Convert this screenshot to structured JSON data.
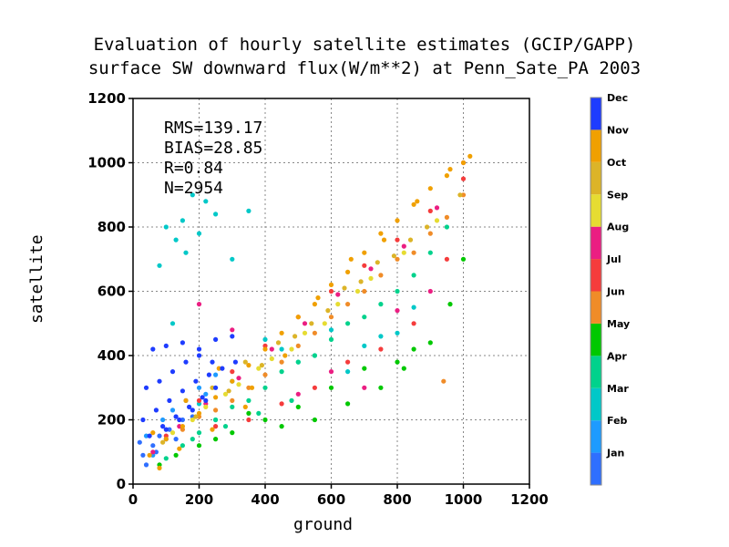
{
  "chart_data": {
    "type": "scatter",
    "title_lines": [
      "Evaluation of hourly satellite estimates (GCIP/GAPP)",
      "surface SW downward flux(W/m**2) at Penn_Sate_PA 2003"
    ],
    "xlabel": "ground",
    "ylabel": "satellite",
    "xlim": [
      0,
      1200
    ],
    "ylim": [
      0,
      1200
    ],
    "xticks": [
      "0",
      "200",
      "400",
      "600",
      "800",
      "1000",
      "1200"
    ],
    "yticks": [
      "0",
      "200",
      "400",
      "600",
      "800",
      "1000",
      "1200"
    ],
    "grid": true,
    "stats": {
      "rms": "RMS=139.17",
      "bias": "BIAS=28.85",
      "r": "R=0.84",
      "n": "N=2954"
    },
    "legend": {
      "placement": "right",
      "entries": [
        {
          "label": "Jan",
          "color": "#2f6fff"
        },
        {
          "label": "Feb",
          "color": "#1e9bff"
        },
        {
          "label": "Mar",
          "color": "#00c8c8"
        },
        {
          "label": "Apr",
          "color": "#00d28c"
        },
        {
          "label": "May",
          "color": "#00c800"
        },
        {
          "label": "Jun",
          "color": "#f08c28"
        },
        {
          "label": "Jul",
          "color": "#f53c3c"
        },
        {
          "label": "Aug",
          "color": "#eb1e82"
        },
        {
          "label": "Sep",
          "color": "#e6dc32"
        },
        {
          "label": "Oct",
          "color": "#dcb428"
        },
        {
          "label": "Nov",
          "color": "#f0a000"
        },
        {
          "label": "Dec",
          "color": "#1e3cff"
        }
      ]
    },
    "series_note": "points colored by month",
    "series": [
      {
        "name": "Jan",
        "color": "#2f6fff",
        "points": [
          [
            30,
            90
          ],
          [
            60,
            120
          ],
          [
            80,
            150
          ],
          [
            110,
            170
          ],
          [
            150,
            200
          ],
          [
            40,
            60
          ],
          [
            70,
            100
          ],
          [
            130,
            140
          ],
          [
            180,
            210
          ],
          [
            20,
            130
          ]
        ]
      },
      {
        "name": "Feb",
        "color": "#1e9bff",
        "points": [
          [
            40,
            150
          ],
          [
            90,
            200
          ],
          [
            120,
            230
          ],
          [
            160,
            260
          ],
          [
            200,
            300
          ],
          [
            250,
            340
          ],
          [
            60,
            90
          ],
          [
            100,
            140
          ],
          [
            220,
            280
          ]
        ]
      },
      {
        "name": "Mar",
        "color": "#00c8c8",
        "points": [
          [
            100,
            800
          ],
          [
            150,
            820
          ],
          [
            200,
            780
          ],
          [
            250,
            840
          ],
          [
            130,
            760
          ],
          [
            180,
            900
          ],
          [
            80,
            680
          ],
          [
            300,
            700
          ],
          [
            350,
            850
          ],
          [
            220,
            880
          ],
          [
            160,
            720
          ],
          [
            120,
            500
          ],
          [
            400,
            450
          ],
          [
            450,
            420
          ],
          [
            500,
            380
          ],
          [
            550,
            400
          ],
          [
            600,
            480
          ],
          [
            650,
            350
          ],
          [
            700,
            430
          ],
          [
            750,
            460
          ],
          [
            800,
            470
          ],
          [
            850,
            550
          ],
          [
            200,
            250
          ],
          [
            300,
            320
          ],
          [
            250,
            200
          ]
        ]
      },
      {
        "name": "Apr",
        "color": "#00d28c",
        "points": [
          [
            100,
            80
          ],
          [
            150,
            120
          ],
          [
            200,
            160
          ],
          [
            250,
            200
          ],
          [
            300,
            240
          ],
          [
            350,
            260
          ],
          [
            400,
            300
          ],
          [
            450,
            350
          ],
          [
            500,
            380
          ],
          [
            550,
            400
          ],
          [
            600,
            450
          ],
          [
            650,
            500
          ],
          [
            700,
            520
          ],
          [
            750,
            560
          ],
          [
            800,
            600
          ],
          [
            850,
            650
          ],
          [
            900,
            720
          ],
          [
            950,
            800
          ],
          [
            180,
            140
          ],
          [
            280,
            180
          ],
          [
            380,
            220
          ],
          [
            480,
            260
          ]
        ]
      },
      {
        "name": "May",
        "color": "#00c800",
        "points": [
          [
            80,
            60
          ],
          [
            130,
            90
          ],
          [
            200,
            120
          ],
          [
            300,
            160
          ],
          [
            400,
            200
          ],
          [
            500,
            240
          ],
          [
            600,
            300
          ],
          [
            700,
            360
          ],
          [
            800,
            380
          ],
          [
            900,
            440
          ],
          [
            960,
            560
          ],
          [
            1000,
            700
          ],
          [
            650,
            250
          ],
          [
            750,
            300
          ],
          [
            850,
            420
          ],
          [
            550,
            200
          ],
          [
            450,
            180
          ],
          [
            350,
            220
          ],
          [
            250,
            140
          ],
          [
            820,
            360
          ]
        ]
      },
      {
        "name": "Jun",
        "color": "#f08c28",
        "points": [
          [
            150,
            170
          ],
          [
            250,
            230
          ],
          [
            350,
            300
          ],
          [
            450,
            380
          ],
          [
            550,
            470
          ],
          [
            650,
            560
          ],
          [
            750,
            650
          ],
          [
            850,
            720
          ],
          [
            950,
            830
          ],
          [
            1000,
            900
          ],
          [
            700,
            600
          ],
          [
            600,
            520
          ],
          [
            500,
            430
          ],
          [
            400,
            340
          ],
          [
            300,
            260
          ],
          [
            200,
            210
          ],
          [
            940,
            320
          ],
          [
            800,
            700
          ],
          [
            900,
            780
          ]
        ]
      },
      {
        "name": "Jul",
        "color": "#f53c3c",
        "points": [
          [
            100,
            150
          ],
          [
            200,
            260
          ],
          [
            300,
            350
          ],
          [
            400,
            430
          ],
          [
            500,
            520
          ],
          [
            600,
            600
          ],
          [
            700,
            680
          ],
          [
            800,
            760
          ],
          [
            900,
            850
          ],
          [
            1000,
            950
          ],
          [
            550,
            300
          ],
          [
            650,
            380
          ],
          [
            750,
            420
          ],
          [
            850,
            500
          ],
          [
            450,
            250
          ],
          [
            350,
            200
          ],
          [
            250,
            180
          ],
          [
            950,
            700
          ]
        ]
      },
      {
        "name": "Aug",
        "color": "#eb1e82",
        "points": [
          [
            60,
            100
          ],
          [
            140,
            180
          ],
          [
            220,
            250
          ],
          [
            320,
            330
          ],
          [
            420,
            420
          ],
          [
            520,
            500
          ],
          [
            620,
            590
          ],
          [
            720,
            670
          ],
          [
            820,
            740
          ],
          [
            920,
            860
          ],
          [
            1000,
            1000
          ],
          [
            300,
            480
          ],
          [
            200,
            560
          ],
          [
            600,
            350
          ],
          [
            700,
            300
          ],
          [
            800,
            540
          ],
          [
            900,
            600
          ],
          [
            500,
            280
          ]
        ]
      },
      {
        "name": "Sep",
        "color": "#e6dc32",
        "points": [
          [
            120,
            160
          ],
          [
            220,
            240
          ],
          [
            320,
            310
          ],
          [
            420,
            390
          ],
          [
            520,
            470
          ],
          [
            620,
            560
          ],
          [
            720,
            640
          ],
          [
            820,
            720
          ],
          [
            920,
            820
          ],
          [
            680,
            600
          ],
          [
            580,
            500
          ],
          [
            480,
            420
          ],
          [
            380,
            360
          ],
          [
            280,
            280
          ],
          [
            180,
            200
          ]
        ]
      },
      {
        "name": "Oct",
        "color": "#dcb428",
        "points": [
          [
            90,
            130
          ],
          [
            190,
            210
          ],
          [
            290,
            290
          ],
          [
            390,
            370
          ],
          [
            490,
            460
          ],
          [
            590,
            540
          ],
          [
            690,
            630
          ],
          [
            790,
            710
          ],
          [
            890,
            800
          ],
          [
            990,
            900
          ],
          [
            640,
            610
          ],
          [
            740,
            690
          ],
          [
            840,
            760
          ],
          [
            540,
            500
          ],
          [
            440,
            440
          ],
          [
            340,
            380
          ],
          [
            240,
            300
          ]
        ]
      },
      {
        "name": "Nov",
        "color": "#f0a000",
        "points": [
          [
            50,
            90
          ],
          [
            100,
            140
          ],
          [
            150,
            180
          ],
          [
            200,
            220
          ],
          [
            250,
            270
          ],
          [
            300,
            320
          ],
          [
            350,
            370
          ],
          [
            400,
            420
          ],
          [
            450,
            470
          ],
          [
            500,
            520
          ],
          [
            550,
            560
          ],
          [
            600,
            620
          ],
          [
            650,
            660
          ],
          [
            700,
            720
          ],
          [
            750,
            780
          ],
          [
            800,
            820
          ],
          [
            850,
            870
          ],
          [
            900,
            920
          ],
          [
            950,
            960
          ],
          [
            1000,
            1000
          ],
          [
            1020,
            1020
          ],
          [
            60,
            160
          ],
          [
            160,
            260
          ],
          [
            260,
            360
          ],
          [
            360,
            300
          ],
          [
            460,
            400
          ],
          [
            560,
            580
          ],
          [
            660,
            700
          ],
          [
            760,
            760
          ],
          [
            860,
            880
          ],
          [
            960,
            980
          ],
          [
            80,
            50
          ],
          [
            140,
            110
          ],
          [
            240,
            170
          ],
          [
            340,
            240
          ]
        ]
      },
      {
        "name": "Dec",
        "color": "#1e3cff",
        "points": [
          [
            60,
            420
          ],
          [
            100,
            430
          ],
          [
            150,
            440
          ],
          [
            200,
            420
          ],
          [
            250,
            450
          ],
          [
            300,
            460
          ],
          [
            40,
            300
          ],
          [
            80,
            320
          ],
          [
            120,
            350
          ],
          [
            160,
            380
          ],
          [
            200,
            400
          ],
          [
            240,
            380
          ],
          [
            30,
            200
          ],
          [
            70,
            230
          ],
          [
            110,
            260
          ],
          [
            150,
            290
          ],
          [
            190,
            320
          ],
          [
            230,
            340
          ],
          [
            270,
            360
          ],
          [
            310,
            380
          ],
          [
            90,
            180
          ],
          [
            130,
            210
          ],
          [
            170,
            240
          ],
          [
            210,
            270
          ],
          [
            250,
            300
          ],
          [
            50,
            150
          ],
          [
            100,
            170
          ],
          [
            140,
            200
          ],
          [
            180,
            230
          ],
          [
            220,
            260
          ]
        ]
      }
    ]
  }
}
